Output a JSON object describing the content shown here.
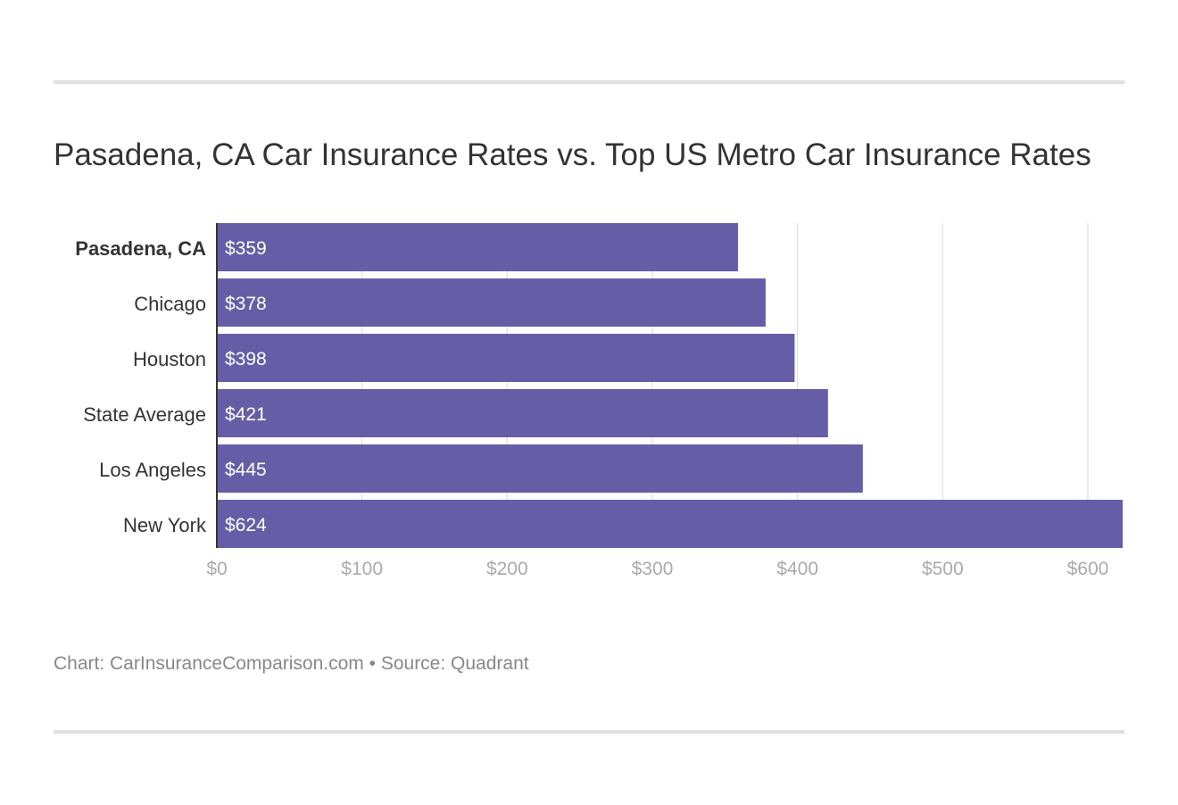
{
  "chart_data": {
    "type": "bar",
    "orientation": "horizontal",
    "title": "Pasadena, CA Car Insurance Rates vs. Top US Metro Car Insurance Rates",
    "categories": [
      "Pasadena, CA",
      "Chicago",
      "Houston",
      "State Average",
      "Los Angeles",
      "New York"
    ],
    "values": [
      359,
      378,
      398,
      421,
      445,
      624
    ],
    "data_labels": [
      "$359",
      "$378",
      "$398",
      "$421",
      "$445",
      "$624"
    ],
    "highlighted_category": "Pasadena, CA",
    "xlim": [
      0,
      624
    ],
    "x_ticks": [
      0,
      100,
      200,
      300,
      400,
      500,
      600
    ],
    "x_tick_labels": [
      "$0",
      "$100",
      "$200",
      "$300",
      "$400",
      "$500",
      "$600"
    ],
    "xlabel": "",
    "ylabel": "",
    "grid": true,
    "legend": "none",
    "bar_color": "#655ea6"
  },
  "footer": "Chart: CarInsuranceComparison.com • Source: Quadrant"
}
